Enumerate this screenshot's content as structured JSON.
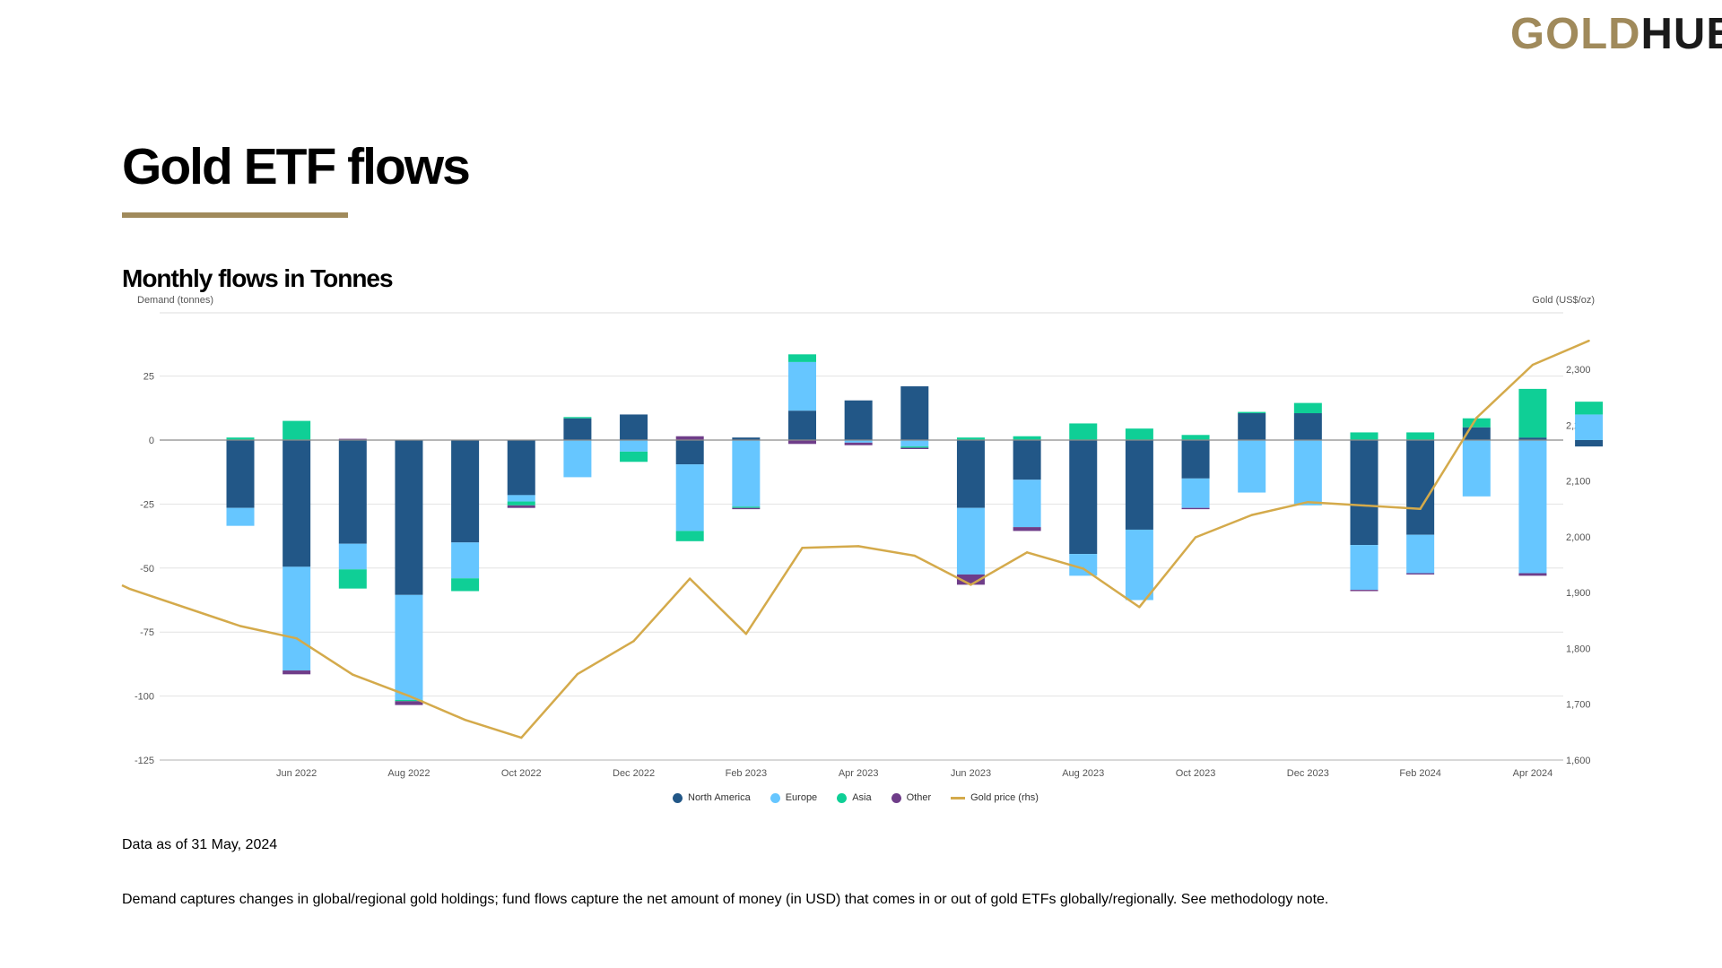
{
  "logo": {
    "part1": "GOLD",
    "part2": "HUB"
  },
  "title": "Gold ETF flows",
  "subtitle": "Monthly flows in Tonnes",
  "notes": {
    "data_as_of": "Data as of 31 May, 2024",
    "methodology": "Demand captures changes in global/regional gold holdings; fund flows capture the net amount of money (in USD) that comes in or out of gold ETFs globally/regionally. See methodology note."
  },
  "colors": {
    "north_america": "#225787",
    "europe": "#66c6ff",
    "asia": "#0fcf96",
    "other": "#6f3d89",
    "gold_price": "#d4aa4b",
    "accent": "#a08a5b"
  },
  "chart_data": {
    "type": "bar",
    "stacked": true,
    "ylabel_left": "Demand (tonnes)",
    "ylabel_right": "Gold (US$/oz)",
    "ylim_left": [
      -125,
      50
    ],
    "yticks_left": [
      25,
      0,
      -25,
      -50,
      -75,
      -100,
      -125
    ],
    "ylim_right": [
      1600,
      2390
    ],
    "yticks_right": [
      2300,
      2200,
      2100,
      2000,
      1900,
      1800,
      1700,
      1600
    ],
    "categories": [
      "May 2022",
      "Jun 2022",
      "Jul 2022",
      "Aug 2022",
      "Sep 2022",
      "Oct 2022",
      "Nov 2022",
      "Dec 2022",
      "Jan 2023",
      "Feb 2023",
      "Mar 2023",
      "Apr 2023",
      "May 2023",
      "Jun 2023",
      "Jul 2023",
      "Aug 2023",
      "Sep 2023",
      "Oct 2023",
      "Nov 2023",
      "Dec 2023",
      "Jan 2024",
      "Feb 2024",
      "Mar 2024",
      "Apr 2024",
      "May 2024"
    ],
    "xtick_labels": [
      {
        "index": 1,
        "label": "Jun 2022"
      },
      {
        "index": 3,
        "label": "Aug 2022"
      },
      {
        "index": 5,
        "label": "Oct 2022"
      },
      {
        "index": 7,
        "label": "Dec 2022"
      },
      {
        "index": 9,
        "label": "Feb 2023"
      },
      {
        "index": 11,
        "label": "Apr 2023"
      },
      {
        "index": 13,
        "label": "Jun 2023"
      },
      {
        "index": 15,
        "label": "Aug 2023"
      },
      {
        "index": 17,
        "label": "Oct 2023"
      },
      {
        "index": 19,
        "label": "Dec 2023"
      },
      {
        "index": 21,
        "label": "Feb 2024"
      },
      {
        "index": 23,
        "label": "Apr 2024"
      }
    ],
    "series": [
      {
        "name": "North America",
        "key": "north_america",
        "values": [
          -26.5,
          -49.5,
          -40.5,
          -60.5,
          -40,
          -21.5,
          8.5,
          10,
          -9.5,
          1,
          11.5,
          15.5,
          21,
          -26.5,
          -15.5,
          -44.5,
          -35,
          -15,
          10.5,
          10.5,
          -41,
          -37,
          5,
          1,
          -2.5
        ]
      },
      {
        "name": "Europe",
        "key": "europe",
        "values": [
          -7,
          -40.5,
          -10,
          -41,
          -14,
          -2.5,
          -14.5,
          -4.5,
          -26,
          -26,
          19,
          -1,
          -2.5,
          -26,
          -18.5,
          -8.5,
          -27.5,
          -11.5,
          -20.5,
          -25.5,
          -17.5,
          -15,
          -22,
          -52,
          10
        ]
      },
      {
        "name": "Asia",
        "key": "asia",
        "values": [
          1,
          7.5,
          -7.5,
          -0.5,
          -5,
          -1.5,
          0.5,
          -4,
          -4,
          -0.5,
          3,
          0,
          -0.5,
          1,
          1.5,
          6.5,
          4.5,
          2,
          0.5,
          4,
          3,
          3,
          3.5,
          19,
          5
        ]
      },
      {
        "name": "Other",
        "key": "other",
        "values": [
          0,
          -1.5,
          0.5,
          -1.5,
          0,
          -1,
          0,
          0,
          1.5,
          -0.5,
          -1.5,
          -1,
          -0.5,
          -4,
          -1.5,
          0,
          0,
          -0.5,
          0,
          0,
          -0.5,
          -0.5,
          0,
          -1,
          0
        ]
      }
    ],
    "line_series": {
      "name": "Gold price (rhs)",
      "key": "gold_price",
      "axis": "right",
      "values": [
        1840,
        1818,
        1753,
        1715,
        1672,
        1640,
        1754,
        1813,
        1925,
        1826,
        1980,
        1983,
        1966,
        1914,
        1972,
        1943,
        1874,
        1999,
        2039,
        2062,
        2056,
        2050,
        2213,
        2308,
        2351
      ],
      "start_value": 1913
    },
    "legend": [
      "North America",
      "Europe",
      "Asia",
      "Other",
      "Gold price (rhs)"
    ],
    "legend_position": "bottom-center",
    "grid": true
  }
}
